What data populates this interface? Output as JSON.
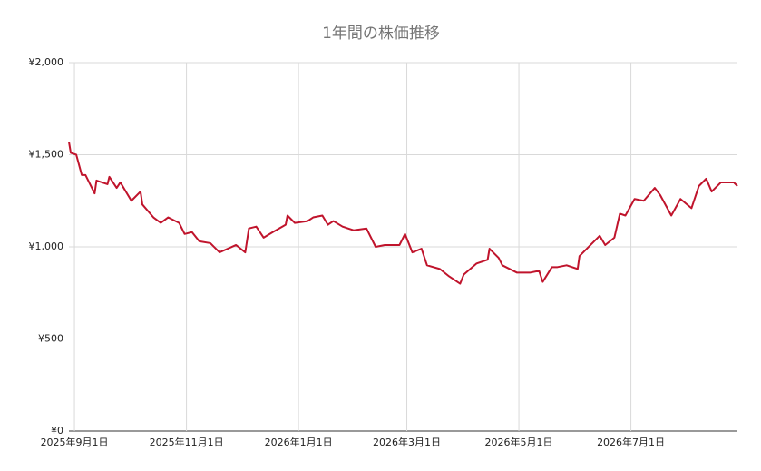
{
  "chart_data": {
    "type": "line",
    "title": "1年間の株価推移",
    "x": [
      "2025-08-29",
      "2025-08-30",
      "2025-09-02",
      "2025-09-05",
      "2025-09-07",
      "2025-09-12",
      "2025-09-13",
      "2025-09-19",
      "2025-09-20",
      "2025-09-24",
      "2025-09-26",
      "2025-10-02",
      "2025-10-07",
      "2025-10-08",
      "2025-10-14",
      "2025-10-18",
      "2025-10-22",
      "2025-10-28",
      "2025-10-31",
      "2025-11-04",
      "2025-11-08",
      "2025-11-14",
      "2025-11-19",
      "2025-11-28",
      "2025-12-03",
      "2025-12-05",
      "2025-12-09",
      "2025-12-13",
      "2025-12-18",
      "2025-12-25",
      "2025-12-26",
      "2025-12-30",
      "2026-01-06",
      "2026-01-09",
      "2026-01-14",
      "2026-01-17",
      "2026-01-20",
      "2026-01-25",
      "2026-01-31",
      "2026-02-07",
      "2026-02-12",
      "2026-02-17",
      "2026-02-25",
      "2026-02-28",
      "2026-03-04",
      "2026-03-09",
      "2026-03-12",
      "2026-03-19",
      "2026-03-24",
      "2026-03-30",
      "2026-04-01",
      "2026-04-08",
      "2026-04-14",
      "2026-04-15",
      "2026-04-20",
      "2026-04-22",
      "2026-04-30",
      "2026-05-07",
      "2026-05-12",
      "2026-05-14",
      "2026-05-19",
      "2026-05-22",
      "2026-05-27",
      "2026-06-02",
      "2026-06-03",
      "2026-06-09",
      "2026-06-14",
      "2026-06-17",
      "2026-06-22",
      "2026-06-25",
      "2026-06-28",
      "2026-07-03",
      "2026-07-08",
      "2026-07-14",
      "2026-07-17",
      "2026-07-23",
      "2026-07-28",
      "2026-08-03",
      "2026-08-07",
      "2026-08-11",
      "2026-08-14",
      "2026-08-19",
      "2026-08-26",
      "2026-08-28"
    ],
    "series": [
      {
        "name": "株価",
        "color": "#c0142c",
        "values": [
          1570,
          1510,
          1500,
          1390,
          1390,
          1290,
          1360,
          1340,
          1380,
          1320,
          1350,
          1250,
          1300,
          1230,
          1160,
          1130,
          1160,
          1130,
          1070,
          1080,
          1030,
          1020,
          970,
          1010,
          970,
          1100,
          1110,
          1050,
          1080,
          1120,
          1170,
          1130,
          1140,
          1160,
          1170,
          1120,
          1140,
          1110,
          1090,
          1100,
          1000,
          1010,
          1010,
          1070,
          970,
          990,
          900,
          880,
          840,
          800,
          850,
          910,
          930,
          990,
          940,
          900,
          860,
          860,
          870,
          810,
          890,
          890,
          900,
          880,
          950,
          1010,
          1060,
          1010,
          1050,
          1180,
          1170,
          1260,
          1250,
          1320,
          1280,
          1170,
          1260,
          1210,
          1330,
          1370,
          1300,
          1350,
          1350,
          1330
        ]
      }
    ],
    "xlim": [
      "2025-08-29",
      "2026-08-28"
    ],
    "xticks": [
      {
        "value": "2025-09-01",
        "label": "2025年9月1日"
      },
      {
        "value": "2025-11-01",
        "label": "2025年11月1日"
      },
      {
        "value": "2026-01-01",
        "label": "2026年1月1日"
      },
      {
        "value": "2026-03-01",
        "label": "2026年3月1日"
      },
      {
        "value": "2026-05-01",
        "label": "2026年5月1日"
      },
      {
        "value": "2026-07-01",
        "label": "2026年7月1日"
      }
    ],
    "ylim": [
      0,
      2000
    ],
    "yticks": [
      {
        "value": 0,
        "label": "¥0"
      },
      {
        "value": 500,
        "label": "¥500"
      },
      {
        "value": 1000,
        "label": "¥1,000"
      },
      {
        "value": 1500,
        "label": "¥1,500"
      },
      {
        "value": 2000,
        "label": "¥2,000"
      }
    ],
    "grid": true
  }
}
